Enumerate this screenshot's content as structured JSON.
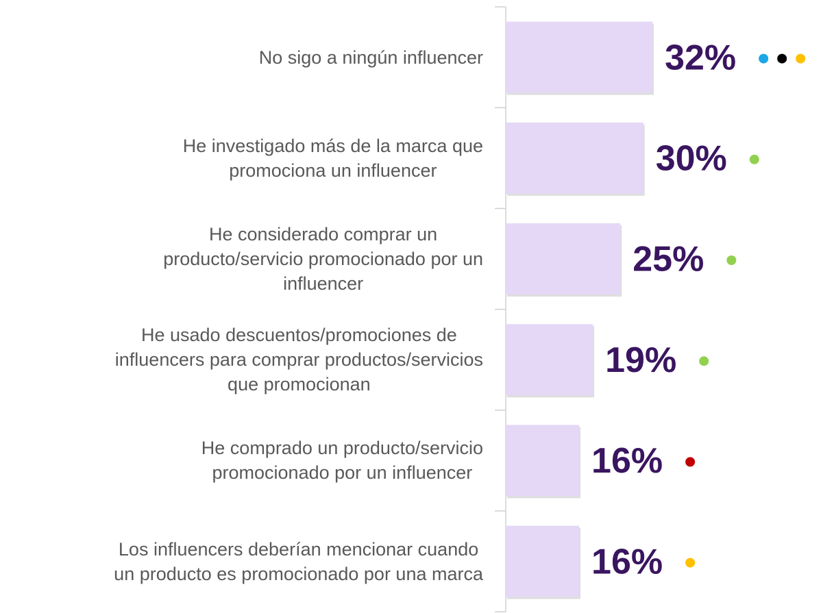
{
  "chart_data": {
    "type": "bar",
    "orientation": "horizontal",
    "categories": [
      "No sigo a ningún influencer",
      "He investigado más de la marca que\npromociona un influencer",
      "He considerado comprar un\nproducto/servicio promocionado por un\ninfluencer",
      "He usado descuentos/promociones de\ninfluencers para comprar productos/servicios\nque promocionan",
      "He comprado un producto/servicio\npromocionado por un influencer",
      "Los influencers deberían mencionar cuando\nun producto es promocionado por una marca"
    ],
    "values": [
      32,
      30,
      25,
      19,
      16,
      16
    ],
    "value_labels": [
      "32%",
      "30%",
      "25%",
      "19%",
      "16%",
      "16%"
    ],
    "color": "#e4d8f6",
    "label_color": "#3a1560",
    "dots": [
      [
        "#1aa7e8",
        "#000000",
        "#ffc000"
      ],
      [
        "#92d050"
      ],
      [
        "#92d050"
      ],
      [
        "#92d050"
      ],
      [
        "#c00000"
      ],
      [
        "#ffc000"
      ]
    ]
  }
}
